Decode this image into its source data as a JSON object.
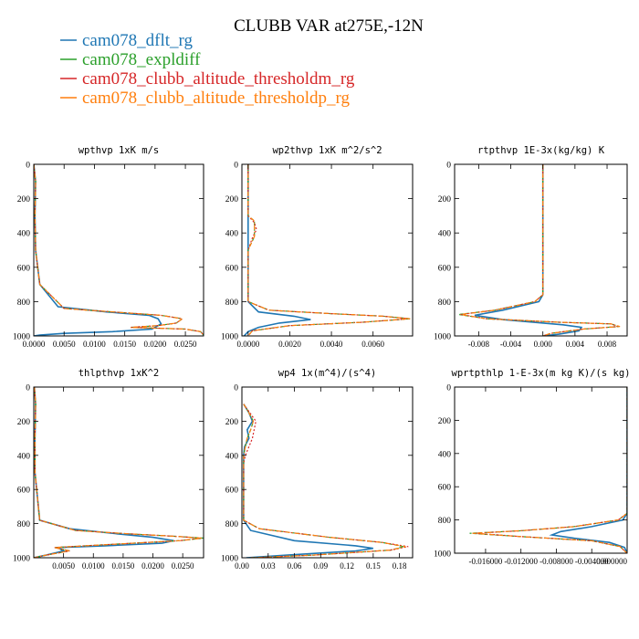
{
  "figure": {
    "title": "CLUBB VAR at275E,-12N",
    "legend": [
      {
        "label": "cam078_dflt_rg",
        "color": "#1f77b4"
      },
      {
        "label": "cam078_expldiff",
        "color": "#2ca02c"
      },
      {
        "label": "cam078_clubb_altitude_thresholdm_rg",
        "color": "#d62728"
      },
      {
        "label": "cam078_clubb_altitude_thresholdp_rg",
        "color": "#ff7f0e"
      }
    ]
  },
  "chart_data": [
    {
      "type": "line",
      "title": "wpthvp  1xK m/s",
      "xlim": [
        0,
        0.028
      ],
      "ylim": [
        1000,
        0
      ],
      "xticks": [
        "0.0000",
        "0.0050",
        "0.0100",
        "0.0150",
        "0.0200",
        "0.0250"
      ],
      "xtick_values": [
        0,
        0.005,
        0.01,
        0.015,
        0.02,
        0.025
      ],
      "yticks": [
        "0",
        "200",
        "400",
        "600",
        "800",
        "1000"
      ],
      "ytick_values": [
        0,
        200,
        400,
        600,
        800,
        1000
      ],
      "series": [
        {
          "color": "#1f77b4",
          "x": [
            0,
            0.0003,
            0.0002,
            0.0003,
            0.001,
            0.004,
            0.012,
            0.019,
            0.0205,
            0.021,
            0.0195,
            0.013,
            0.005,
            0.001,
            0,
            0
          ],
          "y": [
            0,
            100,
            300,
            500,
            700,
            830,
            860,
            880,
            900,
            930,
            960,
            975,
            985,
            995,
            1000,
            1000
          ]
        },
        {
          "color": "#2ca02c",
          "x": [
            0,
            0.0003,
            0.0002,
            0.0003,
            0.001,
            0.005,
            0.013,
            0.021,
            0.0245,
            0.0235,
            0.0205,
            0.016,
            0.025,
            0.0275,
            0.028
          ],
          "y": [
            0,
            100,
            300,
            500,
            700,
            840,
            860,
            880,
            900,
            925,
            940,
            950,
            960,
            975,
            995
          ]
        },
        {
          "color": "#d62728",
          "x": [
            0,
            0.0003,
            0.0002,
            0.0003,
            0.001,
            0.005,
            0.013,
            0.021,
            0.0245,
            0.0235,
            0.0205,
            0.016,
            0.025,
            0.0275,
            0.028
          ],
          "y": [
            0,
            100,
            300,
            500,
            700,
            840,
            860,
            880,
            900,
            925,
            940,
            950,
            960,
            975,
            995
          ]
        },
        {
          "color": "#ff7f0e",
          "x": [
            0,
            0.0003,
            0.0002,
            0.0003,
            0.001,
            0.005,
            0.013,
            0.021,
            0.0245,
            0.0235,
            0.0205,
            0.016,
            0.025,
            0.0275,
            0.028
          ],
          "y": [
            0,
            100,
            300,
            500,
            700,
            840,
            860,
            880,
            900,
            925,
            940,
            950,
            960,
            975,
            995
          ]
        }
      ]
    },
    {
      "type": "line",
      "title": "wp2thvp  1xK m^2/s^2",
      "xlim": [
        -0.0003,
        0.0079
      ],
      "ylim": [
        1000,
        0
      ],
      "xticks": [
        "0.0000",
        "0.0020",
        "0.0040",
        "0.0060"
      ],
      "xtick_values": [
        0,
        0.002,
        0.004,
        0.006
      ],
      "yticks": [
        "0",
        "200",
        "400",
        "600",
        "800",
        "1000"
      ],
      "ytick_values": [
        0,
        200,
        400,
        600,
        800,
        1000
      ],
      "series": [
        {
          "color": "#1f77b4",
          "x": [
            0,
            0,
            0,
            0,
            0,
            0.0005,
            0.0022,
            0.003,
            0.0015,
            0.0005,
            0,
            -0.0002
          ],
          "y": [
            0,
            200,
            400,
            600,
            800,
            860,
            885,
            905,
            925,
            950,
            975,
            1000
          ]
        },
        {
          "color": "#2ca02c",
          "x": [
            0,
            0,
            0.0003,
            0.0003,
            0,
            0,
            0.001,
            0.004,
            0.0065,
            0.0078,
            0.0055,
            0.002,
            0.0002,
            0
          ],
          "y": [
            0,
            300,
            330,
            420,
            500,
            800,
            850,
            870,
            885,
            900,
            920,
            940,
            970,
            1000
          ]
        },
        {
          "color": "#d62728",
          "x": [
            0,
            0,
            0.0003,
            0.0004,
            0.0002,
            0,
            0,
            0.001,
            0.004,
            0.0065,
            0.0077,
            0.0055,
            0.002,
            0.0002,
            0
          ],
          "y": [
            0,
            300,
            340,
            380,
            430,
            500,
            800,
            850,
            870,
            885,
            900,
            920,
            940,
            970,
            1000
          ]
        },
        {
          "color": "#ff7f0e",
          "x": [
            0,
            0,
            0.0003,
            0.0003,
            0,
            0,
            0.001,
            0.004,
            0.0065,
            0.0078,
            0.0055,
            0.002,
            0.0002,
            0
          ],
          "y": [
            0,
            300,
            330,
            420,
            500,
            800,
            850,
            870,
            885,
            900,
            920,
            940,
            970,
            1000
          ]
        }
      ]
    },
    {
      "type": "line",
      "title": "rtpthvp  1E-3x(kg/kg) K",
      "xlim": [
        -0.011,
        0.0105
      ],
      "ylim": [
        1000,
        0
      ],
      "xticks": [
        "-0.008",
        "-0.004",
        "0.000",
        "0.004",
        "0.008"
      ],
      "xtick_values": [
        -0.008,
        -0.004,
        0,
        0.004,
        0.008
      ],
      "yticks": [
        "0",
        "200",
        "400",
        "600",
        "800",
        "1000"
      ],
      "ytick_values": [
        0,
        200,
        400,
        600,
        800,
        1000
      ],
      "series": [
        {
          "color": "#1f77b4",
          "x": [
            0,
            0,
            0,
            -0.0005,
            -0.005,
            -0.0085,
            -0.005,
            0.0025,
            0.0048,
            0.0045,
            0.002,
            0
          ],
          "y": [
            0,
            400,
            760,
            800,
            850,
            880,
            905,
            935,
            950,
            970,
            990,
            1000
          ]
        },
        {
          "color": "#2ca02c",
          "x": [
            0,
            0,
            0,
            -0.001,
            -0.006,
            -0.0105,
            -0.007,
            0.002,
            0.0085,
            0.0095,
            0.005,
            0.001,
            0
          ],
          "y": [
            0,
            400,
            760,
            800,
            850,
            875,
            900,
            920,
            930,
            945,
            960,
            985,
            1000
          ]
        },
        {
          "color": "#d62728",
          "x": [
            0,
            0,
            0,
            -0.001,
            -0.006,
            -0.0102,
            -0.007,
            0.002,
            0.0085,
            0.0093,
            0.005,
            0.001,
            0
          ],
          "y": [
            0,
            400,
            760,
            800,
            850,
            875,
            900,
            920,
            930,
            945,
            960,
            985,
            1000
          ]
        },
        {
          "color": "#ff7f0e",
          "x": [
            0,
            0,
            0,
            -0.001,
            -0.006,
            -0.0103,
            -0.007,
            0.002,
            0.0085,
            0.0096,
            0.005,
            0.001,
            0
          ],
          "y": [
            0,
            400,
            760,
            800,
            850,
            875,
            900,
            920,
            930,
            945,
            960,
            985,
            1000
          ]
        }
      ]
    },
    {
      "type": "line",
      "title": "thlpthvp  1xK^2",
      "xlim": [
        0,
        0.0285
      ],
      "ylim": [
        1000,
        0
      ],
      "xticks": [
        "0.0050",
        "0.0100",
        "0.0150",
        "0.0200",
        "0.0250"
      ],
      "xtick_values": [
        0.005,
        0.01,
        0.015,
        0.02,
        0.025
      ],
      "yticks": [
        "0",
        "200",
        "400",
        "600",
        "800",
        "1000"
      ],
      "ytick_values": [
        0,
        200,
        400,
        600,
        800,
        1000
      ],
      "series": [
        {
          "color": "#1f77b4",
          "x": [
            0.0001,
            0.0003,
            0.0002,
            0.0002,
            0.001,
            0.006,
            0.014,
            0.02,
            0.0235,
            0.0215,
            0.012,
            0.004,
            0.005,
            0.002,
            0
          ],
          "y": [
            0,
            100,
            300,
            500,
            780,
            830,
            860,
            880,
            900,
            915,
            930,
            940,
            960,
            985,
            1000
          ]
        },
        {
          "color": "#2ca02c",
          "x": [
            0.0001,
            0.0003,
            0.0002,
            0.0002,
            0.001,
            0.007,
            0.016,
            0.024,
            0.0285,
            0.0245,
            0.014,
            0.0035,
            0.006,
            0.002,
            0
          ],
          "y": [
            0,
            100,
            300,
            500,
            780,
            840,
            860,
            875,
            885,
            900,
            920,
            940,
            960,
            985,
            1000
          ]
        },
        {
          "color": "#d62728",
          "x": [
            0.0001,
            0.0003,
            0.0002,
            0.0002,
            0.001,
            0.007,
            0.016,
            0.024,
            0.028,
            0.0245,
            0.014,
            0.0035,
            0.006,
            0.002,
            0
          ],
          "y": [
            0,
            100,
            300,
            500,
            780,
            840,
            860,
            875,
            885,
            900,
            920,
            940,
            960,
            985,
            1000
          ]
        },
        {
          "color": "#ff7f0e",
          "x": [
            0.0001,
            0.0003,
            0.0002,
            0.0002,
            0.001,
            0.007,
            0.016,
            0.024,
            0.0283,
            0.0245,
            0.014,
            0.0035,
            0.006,
            0.002,
            0
          ],
          "y": [
            0,
            100,
            300,
            500,
            780,
            840,
            860,
            875,
            885,
            900,
            920,
            940,
            960,
            985,
            1000
          ]
        }
      ]
    },
    {
      "type": "line",
      "title": "wp4  1x(m^4)/(s^4)",
      "xlim": [
        0,
        0.195
      ],
      "ylim": [
        1000,
        0
      ],
      "xticks": [
        "0.00",
        "0.03",
        "0.06",
        "0.09",
        "0.12",
        "0.15",
        "0.18"
      ],
      "xtick_values": [
        0,
        0.03,
        0.06,
        0.09,
        0.12,
        0.15,
        0.18
      ],
      "yticks": [
        "0",
        "200",
        "400",
        "600",
        "800",
        "1000"
      ],
      "ytick_values": [
        0,
        200,
        400,
        600,
        800,
        1000
      ],
      "series": [
        {
          "color": "#1f77b4",
          "x": [
            0.002,
            0.008,
            0.012,
            0.006,
            0.008,
            0.003,
            0.002,
            0.002,
            0.01,
            0.06,
            0.13,
            0.15,
            0.13,
            0.05,
            0.005
          ],
          "y": [
            100,
            150,
            200,
            250,
            300,
            350,
            400,
            780,
            840,
            900,
            930,
            945,
            960,
            985,
            1000
          ]
        },
        {
          "color": "#2ca02c",
          "x": [
            0.002,
            0.008,
            0.013,
            0.01,
            0.006,
            0.004,
            0.002,
            0.002,
            0.02,
            0.1,
            0.16,
            0.185,
            0.17,
            0.08,
            0.01
          ],
          "y": [
            100,
            150,
            200,
            250,
            300,
            350,
            400,
            780,
            830,
            880,
            910,
            935,
            955,
            985,
            1000
          ]
        },
        {
          "color": "#d62728",
          "x": [
            0.002,
            0.009,
            0.016,
            0.014,
            0.012,
            0.008,
            0.004,
            0.002,
            0.002,
            0.02,
            0.1,
            0.16,
            0.19,
            0.17,
            0.08,
            0.01
          ],
          "y": [
            100,
            150,
            200,
            250,
            300,
            350,
            400,
            450,
            780,
            830,
            880,
            910,
            935,
            955,
            985,
            1000
          ]
        },
        {
          "color": "#ff7f0e",
          "x": [
            0.002,
            0.008,
            0.013,
            0.01,
            0.006,
            0.004,
            0.002,
            0.002,
            0.02,
            0.1,
            0.16,
            0.187,
            0.17,
            0.08,
            0.01
          ],
          "y": [
            100,
            150,
            200,
            250,
            300,
            350,
            400,
            780,
            830,
            880,
            910,
            935,
            955,
            985,
            1000
          ]
        }
      ]
    },
    {
      "type": "line",
      "title": "wprtpthlp  1-E-3x(m kg K)/(s kg)",
      "xlim": [
        -0.0195,
        0
      ],
      "ylim": [
        1000,
        0
      ],
      "xticks": [
        "-0.016000",
        "-0.012000",
        "-0.008000",
        "-0.004000",
        "0.000000"
      ],
      "xtick_values": [
        -0.016,
        -0.012,
        -0.008,
        -0.004,
        0
      ],
      "yticks": [
        "0",
        "200",
        "400",
        "600",
        "800",
        "1000"
      ],
      "ytick_values": [
        0,
        200,
        400,
        600,
        800,
        1000
      ],
      "series": [
        {
          "color": "#1f77b4",
          "x": [
            0,
            0,
            0,
            -0.0005,
            -0.004,
            -0.0075,
            -0.0085,
            -0.006,
            -0.002,
            -0.0003,
            0
          ],
          "y": [
            0,
            500,
            760,
            800,
            840,
            870,
            890,
            910,
            935,
            965,
            1000
          ]
        },
        {
          "color": "#2ca02c",
          "x": [
            0,
            0,
            0,
            -0.001,
            -0.006,
            -0.012,
            -0.0178,
            -0.012,
            -0.004,
            -0.0008,
            0
          ],
          "y": [
            0,
            500,
            760,
            800,
            840,
            865,
            880,
            900,
            925,
            960,
            1000
          ]
        },
        {
          "color": "#d62728",
          "x": [
            0,
            0,
            0,
            -0.001,
            -0.006,
            -0.012,
            -0.0172,
            -0.012,
            -0.004,
            -0.0008,
            0
          ],
          "y": [
            0,
            500,
            760,
            800,
            840,
            865,
            880,
            900,
            925,
            960,
            1000
          ]
        },
        {
          "color": "#ff7f0e",
          "x": [
            0,
            0,
            0,
            -0.001,
            -0.006,
            -0.012,
            -0.0175,
            -0.012,
            -0.004,
            -0.0008,
            0
          ],
          "y": [
            0,
            500,
            760,
            800,
            840,
            865,
            880,
            900,
            925,
            960,
            1000
          ]
        }
      ]
    }
  ]
}
